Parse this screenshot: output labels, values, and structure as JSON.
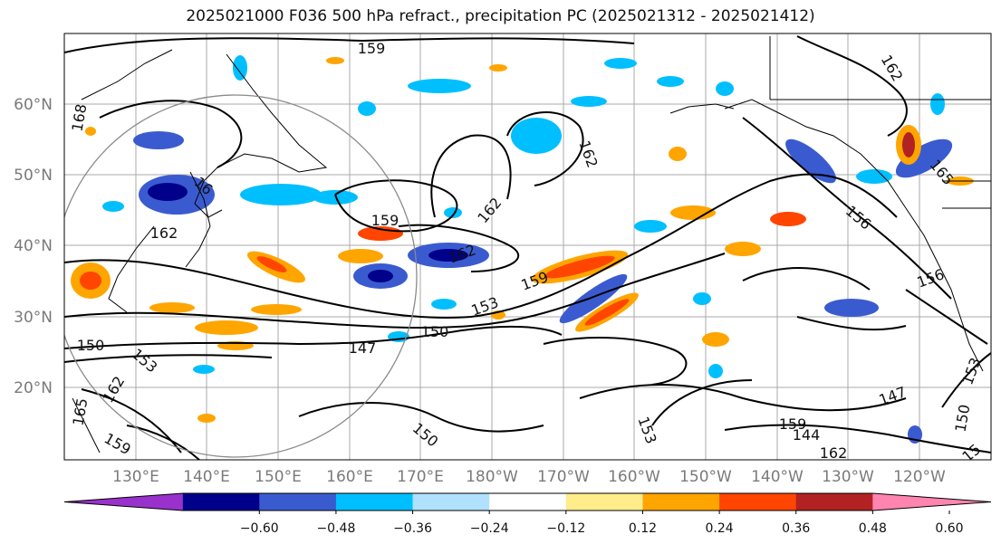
{
  "title": "2025021000 F036 500 hPa refract., precipitation PC (2025021312 - 2025021412)",
  "lat_labels": [
    "60°N",
    "50°N",
    "40°N",
    "30°N",
    "20°N"
  ],
  "lon_labels": [
    "130°E",
    "140°E",
    "150°E",
    "160°E",
    "170°E",
    "180°W",
    "170°W",
    "160°W",
    "150°W",
    "140°W",
    "130°W",
    "120°W"
  ],
  "colorbar": {
    "colors": [
      "#9932cc",
      "#00008b",
      "#3a5bd0",
      "#00bfff",
      "#b0e2ff",
      "#ffffff",
      "#ffec8b",
      "#ffa500",
      "#ff4500",
      "#b22222",
      "#ff85b0"
    ],
    "tick_labels": [
      "−0.60",
      "−0.48",
      "−0.36",
      "−0.24",
      "−0.12",
      "0.12",
      "0.24",
      "0.36",
      "0.48",
      "0.60"
    ]
  },
  "contour_labels": [
    "159",
    "162",
    "168",
    "16",
    "162",
    "159",
    "162",
    "162",
    "159",
    "153",
    "150",
    "147",
    "150",
    "153",
    "162",
    "165",
    "159",
    "144",
    "150",
    "153",
    "159",
    "162",
    "147",
    "150",
    "153",
    "156",
    "156",
    "165",
    "162",
    "15"
  ]
}
